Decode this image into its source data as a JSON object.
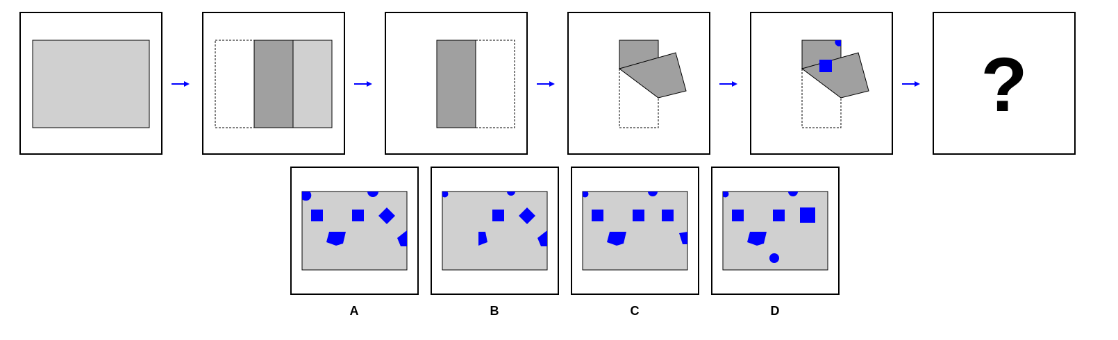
{
  "colors": {
    "paper": "#d0d0d0",
    "folded_paper": "#a0a0a0",
    "hole": "#0000ff",
    "arrow": "#0000ff",
    "border": "#000000",
    "background": "#ffffff"
  },
  "sequence": {
    "question_mark": "?"
  },
  "options": [
    {
      "label": "A"
    },
    {
      "label": "B"
    },
    {
      "label": "C"
    },
    {
      "label": "D"
    }
  ]
}
